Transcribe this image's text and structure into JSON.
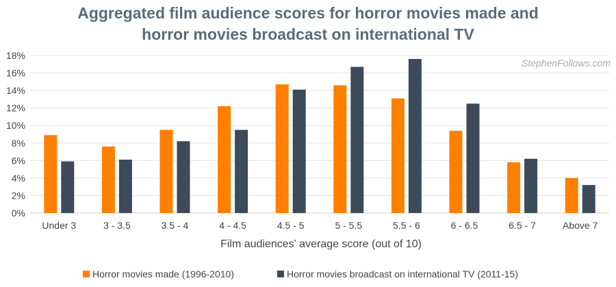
{
  "chart_data": {
    "type": "bar",
    "title_line1": "Aggregated film audience scores for horror movies made and",
    "title_line2": "horror movies broadcast on international TV",
    "xlabel": "Film audiences' average score (out of 10)",
    "ylabel": "",
    "watermark": "StephenFollows.com",
    "categories": [
      "Under 3",
      "3 - 3.5",
      "3.5 - 4",
      "4 - 4.5",
      "4.5 - 5",
      "5 - 5.5",
      "5.5 - 6",
      "6 - 6.5",
      "6.5 - 7",
      "Above 7"
    ],
    "series": [
      {
        "name": "Horror movies made (1996-2010)",
        "color": "#ff7f00",
        "values": [
          8.9,
          7.6,
          9.5,
          12.2,
          14.7,
          14.6,
          13.1,
          9.4,
          5.8,
          4.0
        ]
      },
      {
        "name": "Horror movies broadcast on international TV (2011-15)",
        "color": "#3c4a59",
        "values": [
          5.9,
          6.1,
          8.2,
          9.5,
          14.1,
          16.7,
          17.6,
          12.5,
          6.2,
          3.2
        ]
      }
    ],
    "ylim": [
      0,
      18
    ],
    "yticks": [
      "0%",
      "2%",
      "4%",
      "6%",
      "8%",
      "10%",
      "12%",
      "14%",
      "16%",
      "18%"
    ],
    "grid": true,
    "legend_position": "bottom"
  }
}
